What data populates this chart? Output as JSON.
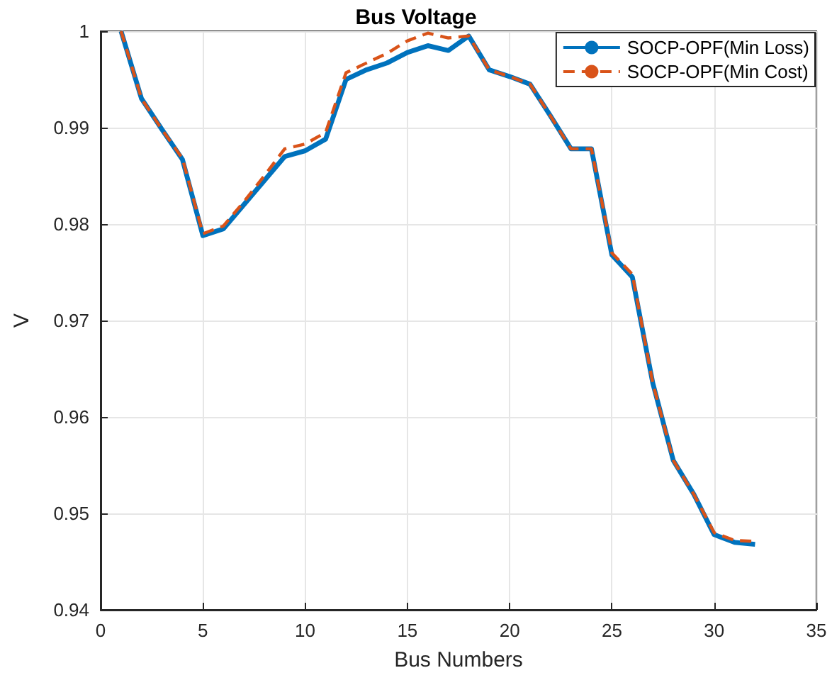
{
  "chart_data": {
    "type": "line",
    "title": "Bus Voltage",
    "xlabel": "Bus Numbers",
    "ylabel": "V",
    "x": [
      1,
      2,
      3,
      4,
      5,
      6,
      7,
      8,
      9,
      10,
      11,
      12,
      13,
      14,
      15,
      16,
      17,
      18,
      19,
      20,
      21,
      22,
      23,
      24,
      25,
      26,
      27,
      28,
      29,
      30,
      31,
      32
    ],
    "series": [
      {
        "name": "SOCP-OPF(Min Loss)",
        "color": "#0072bd",
        "line_style": "solid",
        "values": [
          1.0,
          0.993,
          0.9898,
          0.9867,
          0.9788,
          0.9795,
          0.982,
          0.9845,
          0.987,
          0.9876,
          0.9888,
          0.995,
          0.996,
          0.9967,
          0.9978,
          0.9985,
          0.998,
          0.9995,
          0.996,
          0.9953,
          0.9945,
          0.9912,
          0.9878,
          0.9878,
          0.9768,
          0.9745,
          0.9635,
          0.9555,
          0.952,
          0.9478,
          0.947,
          0.9468
        ]
      },
      {
        "name": "SOCP-OPF(Min Cost)",
        "color": "#d95319",
        "line_style": "dashed",
        "values": [
          1.0,
          0.993,
          0.9898,
          0.9868,
          0.979,
          0.9798,
          0.9823,
          0.985,
          0.9878,
          0.9883,
          0.9895,
          0.9957,
          0.9967,
          0.9977,
          0.999,
          0.9998,
          0.9993,
          0.9995,
          0.996,
          0.9953,
          0.9945,
          0.9912,
          0.9878,
          0.9878,
          0.977,
          0.9748,
          0.9635,
          0.9555,
          0.952,
          0.948,
          0.9472,
          0.9471
        ]
      }
    ],
    "xlim": [
      0,
      35
    ],
    "xticks": [
      0,
      5,
      10,
      15,
      20,
      25,
      30,
      35
    ],
    "ylim": [
      0.94,
      1
    ],
    "yticks": [
      0.94,
      0.95,
      0.96,
      0.97,
      0.98,
      0.99,
      1
    ],
    "grid": true,
    "legend": "top right",
    "marker": "none"
  }
}
